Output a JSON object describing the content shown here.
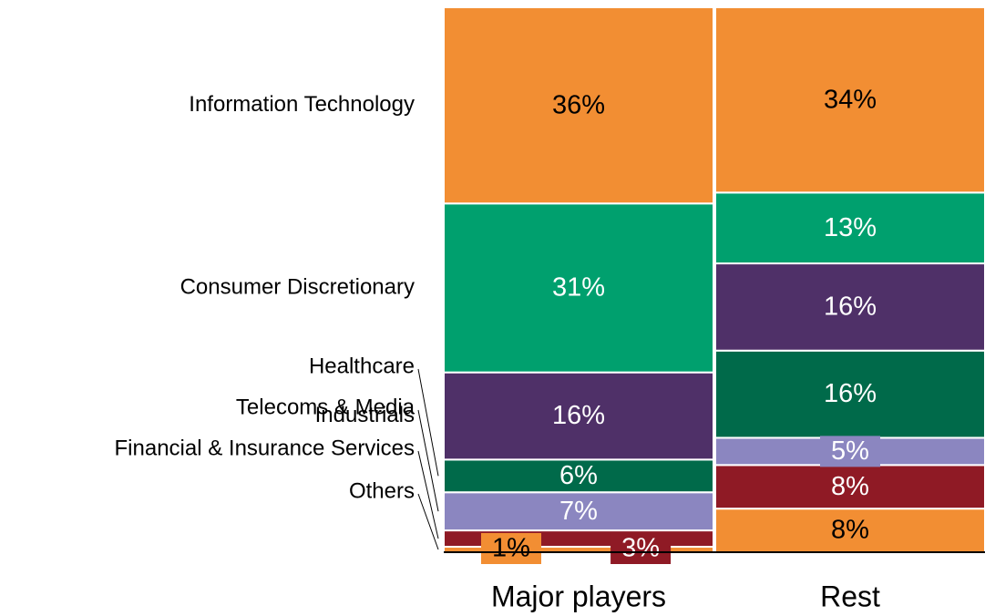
{
  "chart_data": {
    "type": "stacked_bar_100",
    "categories": [
      "Major players",
      "Rest"
    ],
    "series": [
      {
        "name": "Others",
        "color": "#f28e33",
        "values": [
          1,
          8
        ],
        "value_labels": [
          "1%",
          "8%"
        ]
      },
      {
        "name": "Financial & Insurance Services",
        "color": "#8f1a25",
        "values": [
          3,
          8
        ],
        "value_labels": [
          "3%",
          "8%"
        ]
      },
      {
        "name": "Telecoms & Media",
        "color": "#8b86c0",
        "values": [
          7,
          5
        ],
        "value_labels": [
          "7%",
          "5%"
        ]
      },
      {
        "name": "Healthcare",
        "color": "#006a4a",
        "values": [
          6,
          16
        ],
        "value_labels": [
          "6%",
          "16%"
        ]
      },
      {
        "name": "Industrials",
        "color": "#4f3068",
        "values": [
          16,
          16
        ],
        "value_labels": [
          "16%",
          "16%"
        ]
      },
      {
        "name": "Consumer Discretionary",
        "color": "#00a06e",
        "values": [
          31,
          13
        ],
        "value_labels": [
          "31%",
          "13%"
        ]
      },
      {
        "name": "Information Technology",
        "color": "#f28e33",
        "values": [
          36,
          34
        ],
        "value_labels": [
          "36%",
          "34%"
        ]
      }
    ]
  }
}
